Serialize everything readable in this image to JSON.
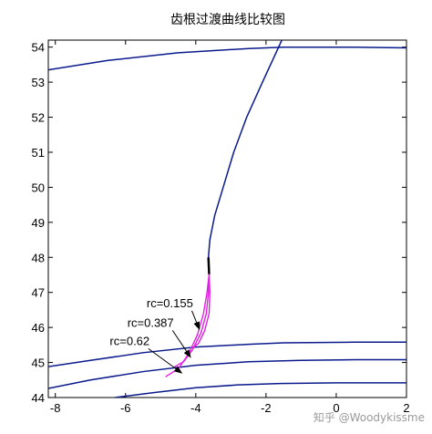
{
  "chart_data": {
    "type": "line",
    "title": "齿根过渡曲线比较图",
    "xlabel": "",
    "ylabel": "",
    "xlim": [
      -8.2,
      2.0
    ],
    "ylim": [
      44.0,
      54.2
    ],
    "xticks": [
      -8,
      -6,
      -4,
      -2,
      0,
      2
    ],
    "yticks": [
      44,
      45,
      46,
      47,
      48,
      49,
      50,
      51,
      52,
      53,
      54
    ],
    "grid": false,
    "series": [
      {
        "color": "#0a1a8c",
        "values": [
          [
            -8.2,
            53.35
          ],
          [
            -6.5,
            53.62
          ],
          [
            -4.5,
            53.84
          ],
          [
            -2.5,
            53.96
          ],
          [
            -1.5,
            54.0
          ],
          [
            0.5,
            54.0
          ],
          [
            2.0,
            53.98
          ]
        ]
      },
      {
        "color": "#0a1a8c",
        "values": [
          [
            -8.2,
            44.88
          ],
          [
            -7.0,
            45.06
          ],
          [
            -5.5,
            45.28
          ],
          [
            -4.0,
            45.44
          ],
          [
            -2.5,
            45.52
          ],
          [
            -1.5,
            45.56
          ],
          [
            0.5,
            45.58
          ],
          [
            2.0,
            45.58
          ]
        ]
      },
      {
        "color": "#0a1a8c",
        "values": [
          [
            -8.2,
            44.26
          ],
          [
            -7.0,
            44.5
          ],
          [
            -5.5,
            44.74
          ],
          [
            -4.0,
            44.92
          ],
          [
            -2.5,
            45.02
          ],
          [
            -1.0,
            45.06
          ],
          [
            0.5,
            45.08
          ],
          [
            2.0,
            45.08
          ]
        ]
      },
      {
        "color": "#0a1a8c",
        "values": [
          [
            -6.3,
            44.0
          ],
          [
            -5.2,
            44.14
          ],
          [
            -4.0,
            44.28
          ],
          [
            -2.8,
            44.36
          ],
          [
            -1.6,
            44.4
          ],
          [
            0.0,
            44.42
          ],
          [
            2.0,
            44.42
          ]
        ]
      },
      {
        "color": "#0a1a8c",
        "values": [
          [
            -3.62,
            47.52
          ],
          [
            -3.64,
            48.0
          ],
          [
            -3.6,
            48.5
          ],
          [
            -3.46,
            49.2
          ],
          [
            -3.22,
            50.0
          ],
          [
            -2.92,
            51.0
          ],
          [
            -2.55,
            52.0
          ],
          [
            -2.1,
            53.0
          ],
          [
            -1.55,
            54.2
          ]
        ]
      },
      {
        "name": "rc=0.155",
        "color": "#e020e0",
        "values": [
          [
            -3.62,
            47.52
          ],
          [
            -3.6,
            47.0
          ],
          [
            -3.62,
            46.4
          ],
          [
            -3.75,
            45.9
          ],
          [
            -3.92,
            45.55
          ],
          [
            -4.08,
            45.42
          ]
        ]
      },
      {
        "name": "rc=0.387",
        "color": "#e020e0",
        "values": [
          [
            -3.62,
            47.52
          ],
          [
            -3.64,
            47.0
          ],
          [
            -3.7,
            46.4
          ],
          [
            -3.85,
            45.85
          ],
          [
            -4.1,
            45.35
          ],
          [
            -4.35,
            45.02
          ],
          [
            -4.6,
            44.88
          ]
        ]
      },
      {
        "name": "rc=0.62",
        "color": "#e020e0",
        "values": [
          [
            -3.62,
            47.52
          ],
          [
            -3.68,
            47.0
          ],
          [
            -3.78,
            46.4
          ],
          [
            -3.95,
            45.8
          ],
          [
            -4.2,
            45.25
          ],
          [
            -4.5,
            44.82
          ],
          [
            -4.85,
            44.6
          ]
        ]
      }
    ],
    "annotations": [
      {
        "text": "rc=0.155",
        "x": -5.4,
        "y": 46.58,
        "arrow_to": [
          -3.9,
          45.95
        ]
      },
      {
        "text": "rc=0.387",
        "x": -5.95,
        "y": 46.02,
        "arrow_to": [
          -4.15,
          45.15
        ]
      },
      {
        "text": "rc=0.62",
        "x": -6.45,
        "y": 45.5,
        "arrow_to": [
          -4.4,
          44.7
        ]
      }
    ]
  },
  "watermark": "知乎 @Woodykissme"
}
